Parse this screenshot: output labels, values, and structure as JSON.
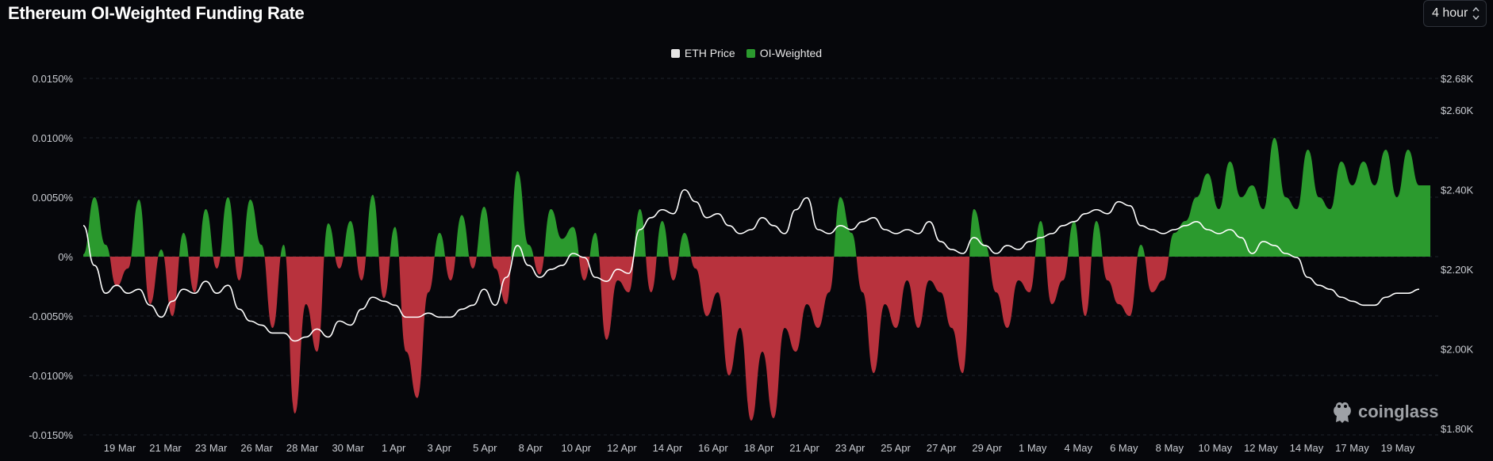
{
  "title": "Ethereum OI-Weighted Funding Rate",
  "interval": {
    "selected": "4 hour"
  },
  "brand": {
    "name": "coinglass",
    "icon": "frog-logo-icon"
  },
  "colors": {
    "positive": "#2b9a2e",
    "negative": "#b8323d",
    "price_line": "#ffffff",
    "grid": "#1f232b",
    "axis_text": "#c9ccd2"
  },
  "chart_data": {
    "type": "area",
    "title": "Ethereum OI-Weighted Funding Rate",
    "legend": [
      "ETH Price",
      "OI-Weighted"
    ],
    "legend_position": "top-center",
    "grid": true,
    "x_ticks": [
      "19 Mar",
      "21 Mar",
      "23 Mar",
      "26 Mar",
      "28 Mar",
      "30 Mar",
      "1 Apr",
      "3 Apr",
      "5 Apr",
      "8 Apr",
      "10 Apr",
      "12 Apr",
      "14 Apr",
      "16 Apr",
      "18 Apr",
      "21 Apr",
      "23 Apr",
      "25 Apr",
      "27 Apr",
      "29 Apr",
      "1 May",
      "4 May",
      "6 May",
      "8 May",
      "10 May",
      "12 May",
      "14 May",
      "17 May",
      "19 May"
    ],
    "y_left": {
      "label": "OI-Weighted funding rate",
      "unit": "%",
      "range": [
        -0.015,
        0.015
      ],
      "ticks": [
        "0.0150%",
        "0.0100%",
        "0.0050%",
        "0%",
        "-0.0050%",
        "-0.0100%",
        "-0.0150%"
      ]
    },
    "y_right": {
      "label": "ETH Price",
      "range": [
        1800,
        2680
      ],
      "tick_values": [
        2680,
        2600,
        2400,
        2200,
        2000,
        1800
      ],
      "ticks": [
        "$2.68K",
        "$2.60K",
        "$2.40K",
        "$2.20K",
        "$2.00K",
        "$1.80K"
      ]
    },
    "series": [
      {
        "name": "OI-Weighted",
        "axis": "left",
        "points": [
          [
            "18 Mar",
            0.0002
          ],
          [
            "18.5 Mar",
            0.005
          ],
          [
            "19 Mar",
            0.001
          ],
          [
            "19.5 Mar",
            -0.0025
          ],
          [
            "20 Mar",
            -0.001
          ],
          [
            "20.5 Mar",
            0.0048
          ],
          [
            "21 Mar",
            -0.004
          ],
          [
            "21.5 Mar",
            0.0006
          ],
          [
            "22 Mar",
            -0.005
          ],
          [
            "22.5 Mar",
            0.002
          ],
          [
            "23 Mar",
            -0.003
          ],
          [
            "23.5 Mar",
            0.004
          ],
          [
            "24 Mar",
            -0.001
          ],
          [
            "24.5 Mar",
            0.005
          ],
          [
            "25 Mar",
            -0.002
          ],
          [
            "25.5 Mar",
            0.0048
          ],
          [
            "26 Mar",
            0.001
          ],
          [
            "26.5 Mar",
            -0.006
          ],
          [
            "27 Mar",
            0.001
          ],
          [
            "27.5 Mar",
            -0.0132
          ],
          [
            "28 Mar",
            -0.004
          ],
          [
            "28.5 Mar",
            -0.008
          ],
          [
            "29 Mar",
            0.0028
          ],
          [
            "29.5 Mar",
            -0.001
          ],
          [
            "30 Mar",
            0.003
          ],
          [
            "30.5 Mar",
            -0.002
          ],
          [
            "31 Mar",
            0.0052
          ],
          [
            "31.5 Mar",
            -0.0035
          ],
          [
            "1 Apr",
            0.0025
          ],
          [
            "1.5 Apr",
            -0.008
          ],
          [
            "2 Apr",
            -0.0119
          ],
          [
            "2.5 Apr",
            -0.003
          ],
          [
            "3 Apr",
            0.002
          ],
          [
            "3.5 Apr",
            -0.002
          ],
          [
            "4 Apr",
            0.0035
          ],
          [
            "4.5 Apr",
            -0.001
          ],
          [
            "5 Apr",
            0.0042
          ],
          [
            "5.5 Apr",
            -0.001
          ],
          [
            "6 Apr",
            -0.004
          ],
          [
            "6.5 Apr",
            0.0072
          ],
          [
            "7 Apr",
            0.001
          ],
          [
            "7.5 Apr",
            -0.0015
          ],
          [
            "8 Apr",
            0.004
          ],
          [
            "8.5 Apr",
            0.0015
          ],
          [
            "9 Apr",
            0.0025
          ],
          [
            "9.5 Apr",
            -0.002
          ],
          [
            "10 Apr",
            0.002
          ],
          [
            "10.5 Apr",
            -0.007
          ],
          [
            "11 Apr",
            -0.002
          ],
          [
            "11.5 Apr",
            -0.003
          ],
          [
            "12 Apr",
            0.004
          ],
          [
            "12.5 Apr",
            -0.003
          ],
          [
            "13 Apr",
            0.003
          ],
          [
            "13.5 Apr",
            -0.002
          ],
          [
            "14 Apr",
            0.002
          ],
          [
            "14.5 Apr",
            -0.001
          ],
          [
            "15 Apr",
            -0.005
          ],
          [
            "15.5 Apr",
            -0.003
          ],
          [
            "16 Apr",
            -0.01
          ],
          [
            "16.5 Apr",
            -0.006
          ],
          [
            "17 Apr",
            -0.0138
          ],
          [
            "17.5 Apr",
            -0.008
          ],
          [
            "18 Apr",
            -0.0136
          ],
          [
            "18.5 Apr",
            -0.006
          ],
          [
            "19 Apr",
            -0.008
          ],
          [
            "19.5 Apr",
            -0.004
          ],
          [
            "20 Apr",
            -0.006
          ],
          [
            "20.5 Apr",
            -0.003
          ],
          [
            "21 Apr",
            0.005
          ],
          [
            "21.5 Apr",
            0.002
          ],
          [
            "22 Apr",
            -0.003
          ],
          [
            "22.5 Apr",
            -0.0098
          ],
          [
            "23 Apr",
            -0.004
          ],
          [
            "23.5 Apr",
            -0.006
          ],
          [
            "24 Apr",
            -0.002
          ],
          [
            "24.5 Apr",
            -0.006
          ],
          [
            "25 Apr",
            -0.002
          ],
          [
            "25.5 Apr",
            -0.003
          ],
          [
            "26 Apr",
            -0.006
          ],
          [
            "26.5 Apr",
            -0.0098
          ],
          [
            "27 Apr",
            0.004
          ],
          [
            "27.5 Apr",
            0.001
          ],
          [
            "28 Apr",
            -0.003
          ],
          [
            "28.5 Apr",
            -0.006
          ],
          [
            "29 Apr",
            -0.002
          ],
          [
            "29.5 Apr",
            -0.003
          ],
          [
            "30 Apr",
            0.003
          ],
          [
            "30.5 Apr",
            -0.004
          ],
          [
            "1 May",
            -0.002
          ],
          [
            "1.5 May",
            0.003
          ],
          [
            "2 May",
            -0.005
          ],
          [
            "2.5 May",
            0.003
          ],
          [
            "3 May",
            -0.002
          ],
          [
            "3.5 May",
            -0.004
          ],
          [
            "4 May",
            -0.005
          ],
          [
            "4.5 May",
            0.001
          ],
          [
            "5 May",
            -0.003
          ],
          [
            "5.5 May",
            -0.002
          ],
          [
            "6 May",
            0.002
          ],
          [
            "6.5 May",
            0.003
          ],
          [
            "7 May",
            0.005
          ],
          [
            "7.5 May",
            0.007
          ],
          [
            "8 May",
            0.004
          ],
          [
            "8.5 May",
            0.008
          ],
          [
            "9 May",
            0.005
          ],
          [
            "9.5 May",
            0.006
          ],
          [
            "10 May",
            0.004
          ],
          [
            "10.5 May",
            0.01
          ],
          [
            "11 May",
            0.005
          ],
          [
            "11.5 May",
            0.004
          ],
          [
            "12 May",
            0.009
          ],
          [
            "12.5 May",
            0.005
          ],
          [
            "13 May",
            0.004
          ],
          [
            "13.5 May",
            0.008
          ],
          [
            "14 May",
            0.006
          ],
          [
            "14.5 May",
            0.008
          ],
          [
            "15 May",
            0.006
          ],
          [
            "15.5 May",
            0.009
          ],
          [
            "16 May",
            0.005
          ],
          [
            "16.5 May",
            0.009
          ],
          [
            "17 May",
            0.006
          ],
          [
            "17.5 May",
            0.006
          ]
        ]
      },
      {
        "name": "ETH Price",
        "axis": "right",
        "points": [
          [
            "18 Mar",
            2310
          ],
          [
            "18.5 Mar",
            2210
          ],
          [
            "19 Mar",
            2140
          ],
          [
            "19.5 Mar",
            2160
          ],
          [
            "20 Mar",
            2140
          ],
          [
            "20.5 Mar",
            2150
          ],
          [
            "21 Mar",
            2110
          ],
          [
            "21.5 Mar",
            2080
          ],
          [
            "22 Mar",
            2120
          ],
          [
            "22.5 Mar",
            2150
          ],
          [
            "23 Mar",
            2140
          ],
          [
            "23.5 Mar",
            2170
          ],
          [
            "24 Mar",
            2140
          ],
          [
            "24.5 Mar",
            2160
          ],
          [
            "25 Mar",
            2100
          ],
          [
            "25.5 Mar",
            2070
          ],
          [
            "26 Mar",
            2060
          ],
          [
            "26.5 Mar",
            2040
          ],
          [
            "27 Mar",
            2040
          ],
          [
            "27.5 Mar",
            2020
          ],
          [
            "28 Mar",
            2030
          ],
          [
            "28.5 Mar",
            2050
          ],
          [
            "29 Mar",
            2030
          ],
          [
            "29.5 Mar",
            2070
          ],
          [
            "30 Mar",
            2060
          ],
          [
            "30.5 Mar",
            2100
          ],
          [
            "31 Mar",
            2130
          ],
          [
            "31.5 Mar",
            2120
          ],
          [
            "1 Apr",
            2110
          ],
          [
            "1.5 Apr",
            2080
          ],
          [
            "2 Apr",
            2080
          ],
          [
            "2.5 Apr",
            2090
          ],
          [
            "3 Apr",
            2080
          ],
          [
            "3.5 Apr",
            2080
          ],
          [
            "4 Apr",
            2100
          ],
          [
            "4.5 Apr",
            2110
          ],
          [
            "5 Apr",
            2150
          ],
          [
            "5.5 Apr",
            2110
          ],
          [
            "6 Apr",
            2180
          ],
          [
            "6.5 Apr",
            2260
          ],
          [
            "7 Apr",
            2210
          ],
          [
            "7.5 Apr",
            2180
          ],
          [
            "8 Apr",
            2200
          ],
          [
            "8.5 Apr",
            2210
          ],
          [
            "9 Apr",
            2240
          ],
          [
            "9.5 Apr",
            2230
          ],
          [
            "10 Apr",
            2180
          ],
          [
            "10.5 Apr",
            2170
          ],
          [
            "11 Apr",
            2200
          ],
          [
            "11.5 Apr",
            2190
          ],
          [
            "12 Apr",
            2300
          ],
          [
            "12.5 Apr",
            2330
          ],
          [
            "13 Apr",
            2350
          ],
          [
            "13.5 Apr",
            2340
          ],
          [
            "14 Apr",
            2400
          ],
          [
            "14.5 Apr",
            2370
          ],
          [
            "15 Apr",
            2330
          ],
          [
            "15.5 Apr",
            2340
          ],
          [
            "16 Apr",
            2310
          ],
          [
            "16.5 Apr",
            2290
          ],
          [
            "17 Apr",
            2300
          ],
          [
            "17.5 Apr",
            2330
          ],
          [
            "18 Apr",
            2310
          ],
          [
            "18.5 Apr",
            2290
          ],
          [
            "19 Apr",
            2350
          ],
          [
            "19.5 Apr",
            2380
          ],
          [
            "20 Apr",
            2300
          ],
          [
            "20.5 Apr",
            2290
          ],
          [
            "21 Apr",
            2310
          ],
          [
            "21.5 Apr",
            2300
          ],
          [
            "22 Apr",
            2320
          ],
          [
            "22.5 Apr",
            2330
          ],
          [
            "23 Apr",
            2300
          ],
          [
            "23.5 Apr",
            2290
          ],
          [
            "24 Apr",
            2300
          ],
          [
            "24.5 Apr",
            2290
          ],
          [
            "25 Apr",
            2320
          ],
          [
            "25.5 Apr",
            2270
          ],
          [
            "26 Apr",
            2250
          ],
          [
            "26.5 Apr",
            2240
          ],
          [
            "27 Apr",
            2280
          ],
          [
            "27.5 Apr",
            2260
          ],
          [
            "28 Apr",
            2240
          ],
          [
            "28.5 Apr",
            2260
          ],
          [
            "29 Apr",
            2250
          ],
          [
            "29.5 Apr",
            2270
          ],
          [
            "30 Apr",
            2280
          ],
          [
            "30.5 Apr",
            2290
          ],
          [
            "1 May",
            2310
          ],
          [
            "1.5 May",
            2320
          ],
          [
            "2 May",
            2340
          ],
          [
            "2.5 May",
            2350
          ],
          [
            "3 May",
            2340
          ],
          [
            "3.5 May",
            2370
          ],
          [
            "4 May",
            2360
          ],
          [
            "4.5 May",
            2310
          ],
          [
            "5 May",
            2300
          ],
          [
            "5.5 May",
            2290
          ],
          [
            "6 May",
            2300
          ],
          [
            "6.5 May",
            2310
          ],
          [
            "7 May",
            2320
          ],
          [
            "7.5 May",
            2300
          ],
          [
            "8 May",
            2290
          ],
          [
            "8.5 May",
            2300
          ],
          [
            "9 May",
            2280
          ],
          [
            "9.5 May",
            2240
          ],
          [
            "10 May",
            2270
          ],
          [
            "10.5 May",
            2260
          ],
          [
            "11 May",
            2240
          ],
          [
            "11.5 May",
            2230
          ],
          [
            "12 May",
            2180
          ],
          [
            "12.5 May",
            2160
          ],
          [
            "13 May",
            2150
          ],
          [
            "13.5 May",
            2130
          ],
          [
            "14 May",
            2120
          ],
          [
            "14.5 May",
            2110
          ],
          [
            "15 May",
            2110
          ],
          [
            "15.5 May",
            2130
          ],
          [
            "16 May",
            2140
          ],
          [
            "16.5 May",
            2140
          ],
          [
            "17 May",
            2150
          ]
        ]
      }
    ]
  }
}
